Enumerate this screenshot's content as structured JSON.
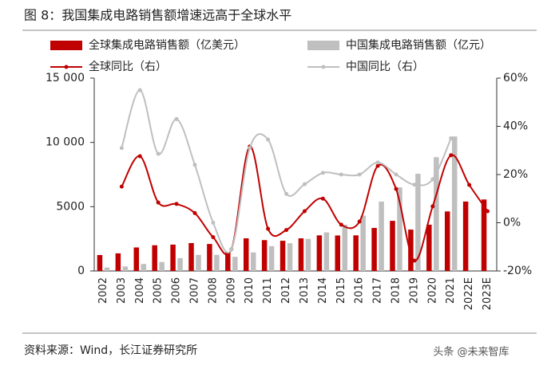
{
  "title": "图 8：我国集成电路销售额增速远高于全球水平",
  "source": "资料来源：Wind，长江证券研究所",
  "watermark": "头条 @未来智库",
  "chart_data": {
    "type": "bar",
    "categories": [
      "2002",
      "2003",
      "2004",
      "2005",
      "2006",
      "2007",
      "2008",
      "2009",
      "2010",
      "2011",
      "2012",
      "2013",
      "2014",
      "2015",
      "2016",
      "2017",
      "2018",
      "2019",
      "2020",
      "2021",
      "2022E",
      "2023E"
    ],
    "series": [
      {
        "name": "全球集成电路销售额（亿美元）",
        "type": "bar",
        "color": "#c00000",
        "values": [
          1240,
          1370,
          1830,
          2000,
          2050,
          2170,
          2100,
          1480,
          2540,
          2400,
          2350,
          2540,
          2770,
          2760,
          2770,
          3350,
          3900,
          3220,
          3600,
          4630,
          5400,
          5560
        ]
      },
      {
        "name": "中国集成电路销售额（亿元）",
        "type": "bar",
        "color": "#bfbfbf",
        "values": [
          270,
          350,
          545,
          700,
          1000,
          1250,
          1250,
          1100,
          1440,
          1930,
          2160,
          2500,
          3000,
          3600,
          4300,
          5400,
          6500,
          7560,
          8850,
          10460,
          null,
          null
        ]
      },
      {
        "name": "全球同比（右）",
        "type": "line",
        "axis": "y2",
        "color": "#c00000",
        "values": [
          null,
          15,
          27.6,
          8.4,
          7.8,
          4,
          -6,
          -11,
          31.6,
          -2.5,
          -3,
          4.8,
          10,
          -0.8,
          0.5,
          23.6,
          14,
          -15.7,
          6.8,
          28,
          15.7,
          4.8
        ]
      },
      {
        "name": "中国同比（右）",
        "type": "line",
        "axis": "y2",
        "color": "#bfbfbf",
        "values": [
          null,
          31,
          55,
          28.6,
          43,
          24,
          0,
          -11,
          31,
          34.5,
          12,
          16,
          20.7,
          20,
          20,
          25,
          20,
          15.8,
          18,
          35,
          null,
          null
        ]
      }
    ],
    "ylim": [
      0,
      15000
    ],
    "yticks": [
      0,
      5000,
      {
        "value": 10000,
        "label": "10 000"
      },
      {
        "value": 15000,
        "label": "15 000"
      }
    ],
    "y2lim": [
      -20,
      60
    ],
    "y2ticks": [
      {
        "value": -20,
        "label": "-20%"
      },
      {
        "value": 0,
        "label": "0%"
      },
      {
        "value": 20,
        "label": "20%"
      },
      {
        "value": 40,
        "label": "40%"
      },
      {
        "value": 60,
        "label": "60%"
      }
    ]
  }
}
